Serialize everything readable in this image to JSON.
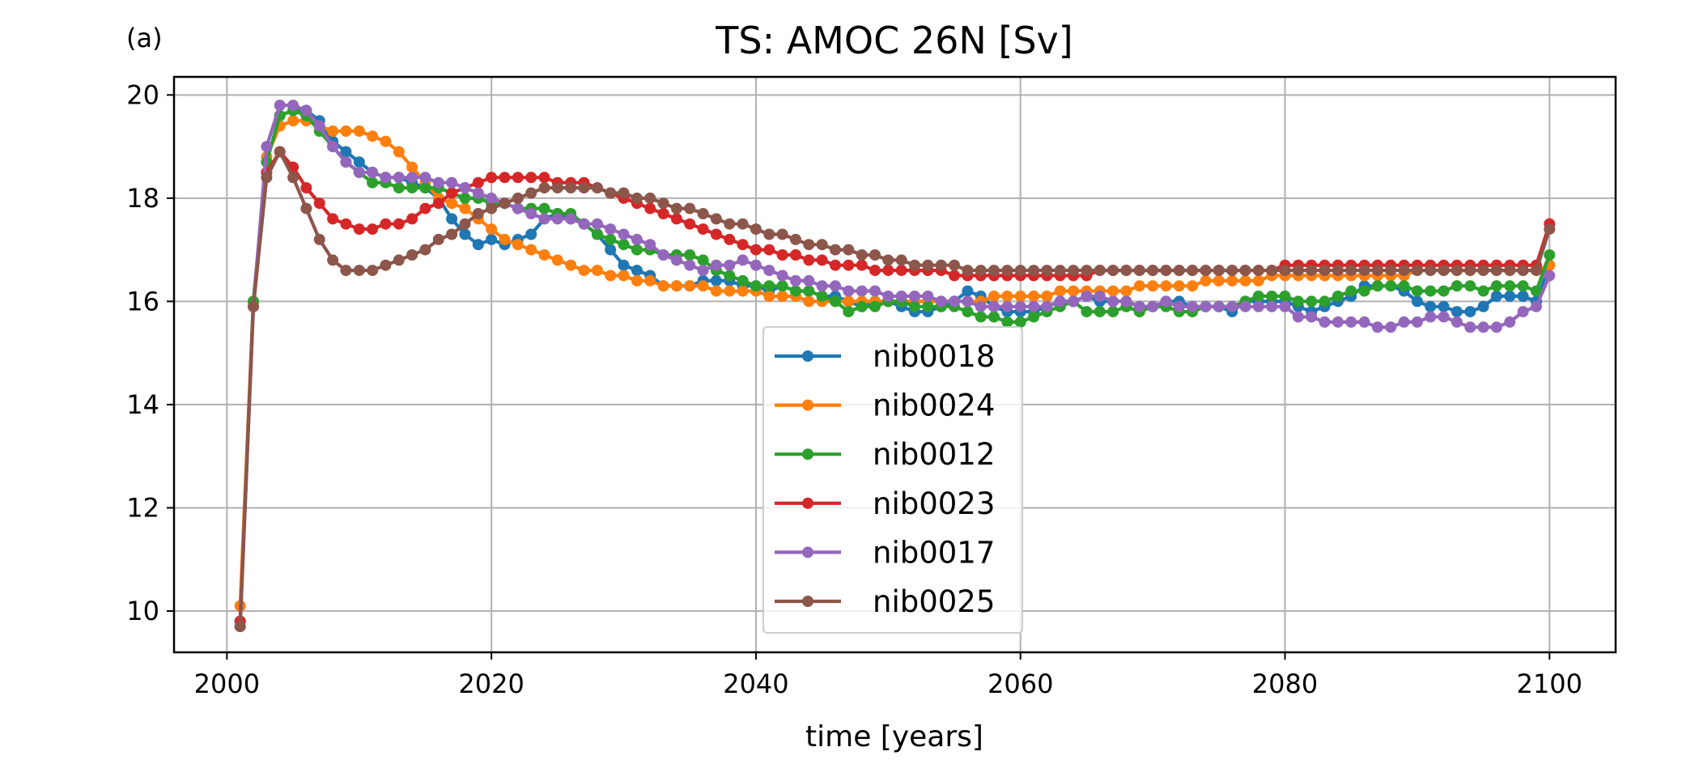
{
  "chart_data": {
    "type": "line",
    "panel_label": "(a)",
    "title": "TS: AMOC 26N [Sv]",
    "xlabel": "time [years]",
    "ylabel": "",
    "xlim": [
      1996,
      2105
    ],
    "ylim": [
      9.2,
      20.35
    ],
    "xticks": [
      2000,
      2020,
      2040,
      2060,
      2080,
      2100
    ],
    "yticks": [
      10,
      12,
      14,
      16,
      18,
      20
    ],
    "grid": true,
    "legend_position": "lower center",
    "markers": true,
    "x": [
      2001,
      2002,
      2003,
      2004,
      2005,
      2006,
      2007,
      2008,
      2009,
      2010,
      2011,
      2012,
      2013,
      2014,
      2015,
      2016,
      2017,
      2018,
      2019,
      2020,
      2021,
      2022,
      2023,
      2024,
      2025,
      2026,
      2027,
      2028,
      2029,
      2030,
      2031,
      2032,
      2033,
      2034,
      2035,
      2036,
      2037,
      2038,
      2039,
      2040,
      2041,
      2042,
      2043,
      2044,
      2045,
      2046,
      2047,
      2048,
      2049,
      2050,
      2051,
      2052,
      2053,
      2054,
      2055,
      2056,
      2057,
      2058,
      2059,
      2060,
      2061,
      2062,
      2063,
      2064,
      2065,
      2066,
      2067,
      2068,
      2069,
      2070,
      2071,
      2072,
      2073,
      2074,
      2075,
      2076,
      2077,
      2078,
      2079,
      2080,
      2081,
      2082,
      2083,
      2084,
      2085,
      2086,
      2087,
      2088,
      2089,
      2090,
      2091,
      2092,
      2093,
      2094,
      2095,
      2096,
      2097,
      2098,
      2099,
      2100
    ],
    "series": [
      {
        "name": "nib0018",
        "color": "#1f77b4",
        "values": [
          9.8,
          16.0,
          18.7,
          19.6,
          19.7,
          19.7,
          19.5,
          19.1,
          18.9,
          18.7,
          18.5,
          18.4,
          18.4,
          18.3,
          18.2,
          18.0,
          17.6,
          17.3,
          17.1,
          17.2,
          17.1,
          17.2,
          17.3,
          17.6,
          17.7,
          17.6,
          17.5,
          17.3,
          17.0,
          16.7,
          16.6,
          16.5,
          16.3,
          16.3,
          16.3,
          16.4,
          16.4,
          16.4,
          16.3,
          16.3,
          16.2,
          16.3,
          16.2,
          16.2,
          16.1,
          16.1,
          16.0,
          15.9,
          16.0,
          16.0,
          15.9,
          15.8,
          15.8,
          15.9,
          16.0,
          16.2,
          16.1,
          15.9,
          15.8,
          15.8,
          15.8,
          15.9,
          16.0,
          16.0,
          16.1,
          16.0,
          16.0,
          16.0,
          15.9,
          15.9,
          16.0,
          16.0,
          15.9,
          15.9,
          15.9,
          15.8,
          16.0,
          16.0,
          16.0,
          16.0,
          15.9,
          15.8,
          15.9,
          16.0,
          16.1,
          16.3,
          16.3,
          16.3,
          16.2,
          16.0,
          15.9,
          15.9,
          15.8,
          15.8,
          15.9,
          16.1,
          16.1,
          16.1,
          16.0,
          16.7
        ]
      },
      {
        "name": "nib0024",
        "color": "#ff7f0e",
        "values": [
          10.1,
          16.0,
          18.8,
          19.4,
          19.5,
          19.5,
          19.4,
          19.3,
          19.3,
          19.3,
          19.2,
          19.1,
          18.9,
          18.6,
          18.3,
          18.0,
          17.9,
          17.8,
          17.6,
          17.4,
          17.2,
          17.1,
          17.0,
          16.9,
          16.8,
          16.7,
          16.6,
          16.6,
          16.5,
          16.5,
          16.4,
          16.4,
          16.3,
          16.3,
          16.3,
          16.3,
          16.2,
          16.2,
          16.2,
          16.2,
          16.1,
          16.1,
          16.1,
          16.0,
          16.0,
          16.0,
          16.0,
          16.0,
          16.0,
          16.0,
          16.0,
          16.0,
          16.0,
          16.0,
          16.0,
          16.0,
          16.0,
          16.1,
          16.1,
          16.1,
          16.1,
          16.1,
          16.2,
          16.2,
          16.2,
          16.2,
          16.2,
          16.2,
          16.3,
          16.3,
          16.3,
          16.3,
          16.3,
          16.4,
          16.4,
          16.4,
          16.4,
          16.4,
          16.5,
          16.5,
          16.5,
          16.5,
          16.5,
          16.5,
          16.5,
          16.5,
          16.5,
          16.5,
          16.5,
          16.6,
          16.6,
          16.6,
          16.6,
          16.6,
          16.6,
          16.6,
          16.6,
          16.6,
          16.6,
          16.7
        ]
      },
      {
        "name": "nib0012",
        "color": "#2ca02c",
        "values": [
          9.8,
          16.0,
          18.7,
          19.6,
          19.7,
          19.6,
          19.3,
          19.0,
          18.7,
          18.5,
          18.3,
          18.3,
          18.2,
          18.2,
          18.2,
          18.2,
          18.1,
          18.0,
          18.0,
          17.9,
          17.9,
          17.8,
          17.8,
          17.8,
          17.7,
          17.7,
          17.5,
          17.3,
          17.2,
          17.1,
          17.0,
          17.0,
          16.9,
          16.9,
          16.9,
          16.8,
          16.6,
          16.5,
          16.4,
          16.3,
          16.3,
          16.3,
          16.2,
          16.2,
          16.1,
          16.0,
          15.8,
          15.9,
          15.9,
          16.0,
          16.0,
          15.9,
          15.9,
          15.9,
          15.9,
          15.8,
          15.7,
          15.7,
          15.6,
          15.6,
          15.7,
          15.8,
          15.9,
          16.0,
          15.8,
          15.8,
          15.8,
          15.9,
          15.8,
          15.9,
          15.9,
          15.8,
          15.8,
          15.9,
          15.9,
          15.9,
          16.0,
          16.1,
          16.1,
          16.1,
          16.0,
          16.0,
          16.0,
          16.1,
          16.2,
          16.2,
          16.3,
          16.3,
          16.3,
          16.2,
          16.2,
          16.2,
          16.3,
          16.3,
          16.2,
          16.3,
          16.3,
          16.3,
          16.2,
          16.9
        ]
      },
      {
        "name": "nib0023",
        "color": "#d62728",
        "values": [
          9.8,
          15.9,
          18.5,
          18.9,
          18.6,
          18.2,
          17.9,
          17.6,
          17.5,
          17.4,
          17.4,
          17.5,
          17.5,
          17.6,
          17.8,
          17.9,
          18.1,
          18.2,
          18.3,
          18.4,
          18.4,
          18.4,
          18.4,
          18.4,
          18.3,
          18.3,
          18.3,
          18.2,
          18.1,
          18.0,
          17.9,
          17.8,
          17.7,
          17.6,
          17.5,
          17.4,
          17.3,
          17.2,
          17.1,
          17.0,
          17.0,
          16.9,
          16.9,
          16.8,
          16.8,
          16.7,
          16.7,
          16.7,
          16.6,
          16.6,
          16.6,
          16.6,
          16.6,
          16.6,
          16.5,
          16.5,
          16.5,
          16.5,
          16.5,
          16.5,
          16.5,
          16.5,
          16.5,
          16.5,
          16.5,
          16.6,
          16.6,
          16.6,
          16.6,
          16.6,
          16.6,
          16.6,
          16.6,
          16.6,
          16.6,
          16.6,
          16.6,
          16.6,
          16.6,
          16.7,
          16.7,
          16.7,
          16.7,
          16.7,
          16.7,
          16.7,
          16.7,
          16.7,
          16.7,
          16.7,
          16.7,
          16.7,
          16.7,
          16.7,
          16.7,
          16.7,
          16.7,
          16.7,
          16.7,
          17.5
        ]
      },
      {
        "name": "nib0017",
        "color": "#9467bd",
        "values": [
          9.7,
          15.9,
          19.0,
          19.8,
          19.8,
          19.7,
          19.4,
          19.0,
          18.7,
          18.5,
          18.5,
          18.4,
          18.4,
          18.4,
          18.4,
          18.3,
          18.3,
          18.2,
          18.1,
          18.0,
          17.9,
          17.8,
          17.7,
          17.6,
          17.6,
          17.6,
          17.5,
          17.5,
          17.4,
          17.3,
          17.2,
          17.1,
          16.9,
          16.8,
          16.7,
          16.6,
          16.7,
          16.7,
          16.8,
          16.7,
          16.6,
          16.5,
          16.4,
          16.4,
          16.3,
          16.3,
          16.2,
          16.2,
          16.2,
          16.1,
          16.1,
          16.1,
          16.1,
          16.0,
          16.0,
          16.0,
          15.9,
          15.9,
          15.9,
          15.9,
          15.9,
          15.9,
          16.0,
          16.0,
          16.1,
          16.1,
          16.0,
          16.0,
          15.9,
          15.9,
          16.0,
          15.9,
          15.9,
          15.9,
          15.9,
          15.9,
          15.9,
          15.9,
          15.9,
          15.9,
          15.7,
          15.7,
          15.6,
          15.6,
          15.6,
          15.6,
          15.5,
          15.5,
          15.6,
          15.6,
          15.7,
          15.7,
          15.6,
          15.5,
          15.5,
          15.5,
          15.6,
          15.8,
          15.9,
          16.5
        ]
      },
      {
        "name": "nib0025",
        "color": "#8c564b",
        "values": [
          9.7,
          15.9,
          18.4,
          18.9,
          18.4,
          17.8,
          17.2,
          16.8,
          16.6,
          16.6,
          16.6,
          16.7,
          16.8,
          16.9,
          17.0,
          17.2,
          17.3,
          17.5,
          17.7,
          17.8,
          17.9,
          18.0,
          18.1,
          18.2,
          18.2,
          18.2,
          18.2,
          18.2,
          18.1,
          18.1,
          18.0,
          18.0,
          17.9,
          17.8,
          17.8,
          17.7,
          17.6,
          17.5,
          17.5,
          17.4,
          17.3,
          17.3,
          17.2,
          17.1,
          17.1,
          17.0,
          17.0,
          16.9,
          16.9,
          16.8,
          16.8,
          16.7,
          16.7,
          16.7,
          16.7,
          16.6,
          16.6,
          16.6,
          16.6,
          16.6,
          16.6,
          16.6,
          16.6,
          16.6,
          16.6,
          16.6,
          16.6,
          16.6,
          16.6,
          16.6,
          16.6,
          16.6,
          16.6,
          16.6,
          16.6,
          16.6,
          16.6,
          16.6,
          16.6,
          16.6,
          16.6,
          16.6,
          16.6,
          16.6,
          16.6,
          16.6,
          16.6,
          16.6,
          16.6,
          16.6,
          16.6,
          16.6,
          16.6,
          16.6,
          16.6,
          16.6,
          16.6,
          16.6,
          16.6,
          17.4
        ]
      }
    ]
  }
}
